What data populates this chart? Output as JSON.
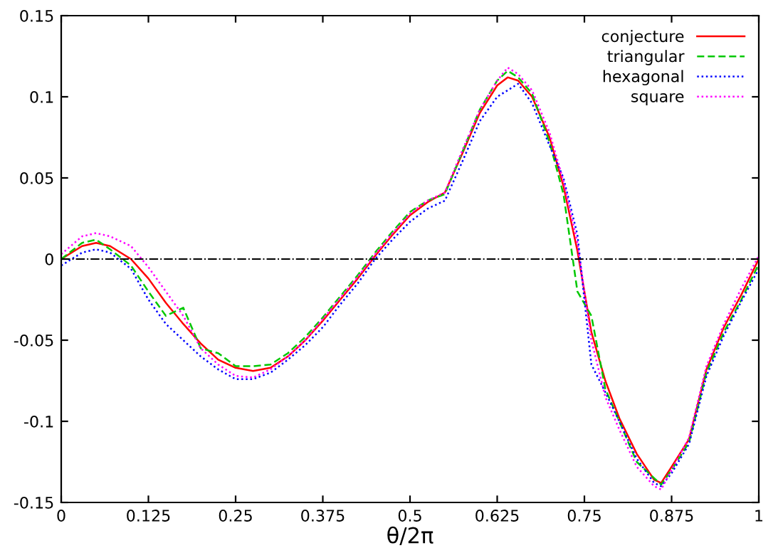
{
  "chart_data": {
    "type": "line",
    "xlabel": "θ/2π",
    "x": [
      0,
      0.03,
      0.05,
      0.07,
      0.1,
      0.125,
      0.15,
      0.175,
      0.2,
      0.225,
      0.25,
      0.275,
      0.3,
      0.325,
      0.35,
      0.375,
      0.4,
      0.425,
      0.45,
      0.475,
      0.5,
      0.525,
      0.55,
      0.575,
      0.6,
      0.625,
      0.64,
      0.655,
      0.675,
      0.7,
      0.72,
      0.74,
      0.76,
      0.78,
      0.8,
      0.825,
      0.85,
      0.86,
      0.875,
      0.9,
      0.925,
      0.95,
      0.975,
      1
    ],
    "series": [
      {
        "name": "conjecture",
        "color": "#ff0000",
        "line_style": "solid",
        "values": [
          0,
          0.008,
          0.01,
          0.008,
          0,
          -0.012,
          -0.027,
          -0.04,
          -0.052,
          -0.062,
          -0.067,
          -0.069,
          -0.067,
          -0.06,
          -0.05,
          -0.038,
          -0.025,
          -0.012,
          0.002,
          0.015,
          0.027,
          0.035,
          0.041,
          0.065,
          0.09,
          0.107,
          0.112,
          0.11,
          0.1,
          0.075,
          0.045,
          0.005,
          -0.045,
          -0.075,
          -0.098,
          -0.12,
          -0.136,
          -0.138,
          -0.128,
          -0.111,
          -0.068,
          -0.042,
          -0.022,
          0
        ]
      },
      {
        "name": "triangular",
        "color": "#00c800",
        "line_style": "dashed",
        "values": [
          0,
          0.01,
          0.012,
          0.006,
          -0.004,
          -0.02,
          -0.035,
          -0.03,
          -0.055,
          -0.058,
          -0.066,
          -0.066,
          -0.065,
          -0.058,
          -0.048,
          -0.036,
          -0.023,
          -0.01,
          0.004,
          0.017,
          0.029,
          0.036,
          0.04,
          0.066,
          0.092,
          0.11,
          0.116,
          0.112,
          0.102,
          0.072,
          0.04,
          -0.02,
          -0.035,
          -0.08,
          -0.1,
          -0.125,
          -0.135,
          -0.139,
          -0.13,
          -0.113,
          -0.07,
          -0.045,
          -0.025,
          -0.003
        ]
      },
      {
        "name": "hexagonal",
        "color": "#0000ff",
        "line_style": "dotted",
        "values": [
          -0.004,
          0.004,
          0.006,
          0.004,
          -0.006,
          -0.025,
          -0.04,
          -0.05,
          -0.06,
          -0.068,
          -0.074,
          -0.074,
          -0.07,
          -0.062,
          -0.053,
          -0.042,
          -0.028,
          -0.015,
          0,
          0.012,
          0.023,
          0.031,
          0.036,
          0.06,
          0.085,
          0.1,
          0.104,
          0.108,
          0.096,
          0.07,
          0.05,
          0.015,
          -0.065,
          -0.082,
          -0.1,
          -0.123,
          -0.138,
          -0.14,
          -0.132,
          -0.114,
          -0.072,
          -0.047,
          -0.026,
          -0.006
        ]
      },
      {
        "name": "square",
        "color": "#ff00ff",
        "line_style": "dotted",
        "values": [
          0.003,
          0.014,
          0.016,
          0.014,
          0.008,
          -0.005,
          -0.02,
          -0.035,
          -0.055,
          -0.065,
          -0.072,
          -0.073,
          -0.068,
          -0.06,
          -0.05,
          -0.037,
          -0.024,
          -0.011,
          0.003,
          0.016,
          0.028,
          0.036,
          0.041,
          0.067,
          0.092,
          0.11,
          0.118,
          0.114,
          0.104,
          0.078,
          0.048,
          0.01,
          -0.05,
          -0.085,
          -0.105,
          -0.128,
          -0.14,
          -0.142,
          -0.13,
          -0.11,
          -0.066,
          -0.04,
          -0.018,
          0.002
        ]
      }
    ],
    "xlim": [
      0,
      1
    ],
    "xticks": [
      0,
      0.125,
      0.25,
      0.375,
      0.5,
      0.625,
      0.75,
      0.875,
      1
    ],
    "ylim": [
      -0.15,
      0.15
    ],
    "yticks": [
      -0.15,
      -0.1,
      -0.05,
      0,
      0.05,
      0.1,
      0.15
    ],
    "ref_lines": [
      {
        "axis": "y",
        "value": 0,
        "color": "#000000",
        "line_style": "dashdot"
      }
    ],
    "legend": "top right",
    "grid": false
  }
}
